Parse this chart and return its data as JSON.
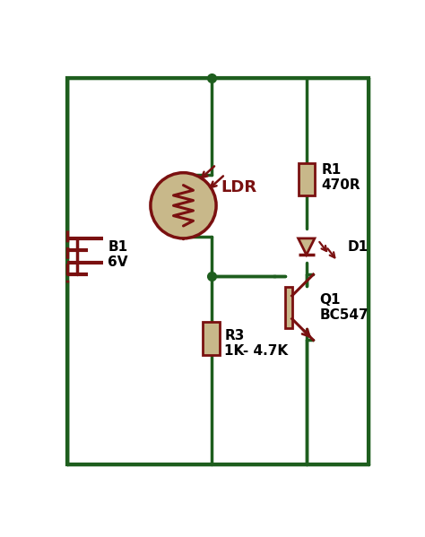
{
  "bg_color": "#ffffff",
  "border_color": "#2d6a2d",
  "dark_red": "#7a1010",
  "tan": "#c8b88a",
  "green": "#1e5e1e",
  "line_width": 2.5,
  "border_lw": 3.0,
  "labels": {
    "B1": "B1\n6V",
    "R1": "R1\n470R",
    "R3": "R3\n1K- 4.7K",
    "LDR": "LDR",
    "D1": "D1",
    "Q1": "Q1\nBC547"
  }
}
